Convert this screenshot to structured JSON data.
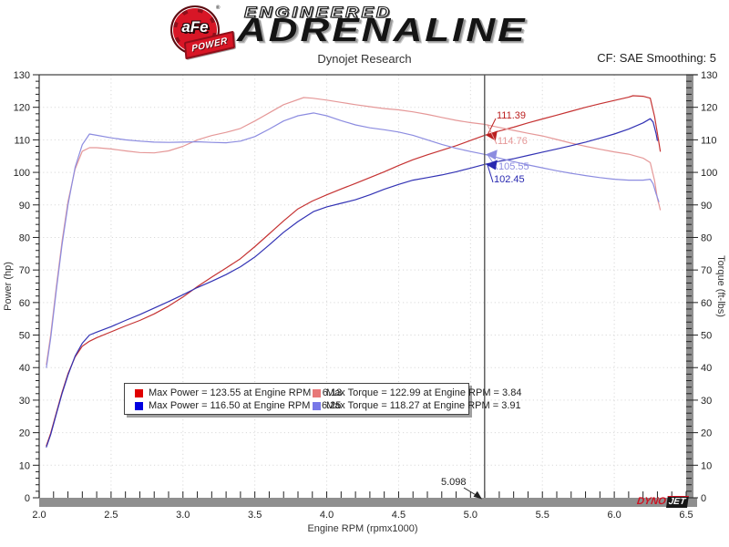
{
  "header": {
    "logo": {
      "afe": "aFe",
      "registered": "®",
      "power": "POWER",
      "line1": "ENGINEERED",
      "line2": "ADRENALINE"
    },
    "subtitle": "Dynojet Research",
    "cf_label": "CF: SAE Smoothing: 5"
  },
  "watermark": {
    "dyno": "DYNO",
    "jet": "JET"
  },
  "chart_data": {
    "type": "line",
    "xlabel": "Engine RPM (rpmx1000)",
    "ylabel_left": "Power (hp)",
    "ylabel_right": "Torque (ft-lbs)",
    "xlim": [
      2.0,
      6.5
    ],
    "ylim": [
      0,
      130
    ],
    "x_major_step": 0.5,
    "x_minor_step": 0.1,
    "y_major_step": 10,
    "y_minor_step": 2,
    "grid": true,
    "colors": {
      "grid": "#d9d9d9",
      "axis_band": "#8f8f8f",
      "border": "#444444",
      "cursor_line": "#555555"
    },
    "cursor": {
      "x": 5.098,
      "label": "5.098",
      "values": [
        {
          "value": 111.39,
          "text": "111.39",
          "series": "power-red",
          "color": "#bb2020",
          "arrow": true
        },
        {
          "value": 114.76,
          "text": "114.76",
          "series": "torque-red",
          "color": "#e59898",
          "arrow": false
        },
        {
          "value": 105.55,
          "text": "105.55",
          "series": "torque-blue",
          "color": "#8c8ce0",
          "arrow": true
        },
        {
          "value": 102.45,
          "text": "102.45",
          "series": "power-blue",
          "color": "#2828b0",
          "arrow": true
        }
      ]
    },
    "legend": {
      "entries": [
        {
          "color": "#e00000",
          "text": "Max Power = 123.55 at Engine RPM = 6.13"
        },
        {
          "color": "#e87878",
          "text": "Max Torque = 122.99 at Engine RPM = 3.84"
        },
        {
          "color": "#0000e0",
          "text": "Max Power = 116.50 at Engine RPM = 6.25"
        },
        {
          "color": "#7878e8",
          "text": "Max Torque = 118.27 at Engine RPM = 3.91"
        }
      ]
    },
    "series": [
      {
        "name": "power-red",
        "color": "#c53232",
        "max": {
          "value": 123.55,
          "rpm": 6.13
        },
        "points": [
          [
            2.05,
            16
          ],
          [
            2.08,
            19.8
          ],
          [
            2.12,
            26.2
          ],
          [
            2.16,
            32.5
          ],
          [
            2.2,
            38.1
          ],
          [
            2.25,
            43.3
          ],
          [
            2.3,
            46.6
          ],
          [
            2.35,
            48.1
          ],
          [
            2.4,
            49.2
          ],
          [
            2.5,
            51
          ],
          [
            2.6,
            52.8
          ],
          [
            2.7,
            54.5
          ],
          [
            2.8,
            56.5
          ],
          [
            2.9,
            58.9
          ],
          [
            3,
            61.7
          ],
          [
            3.1,
            64.9
          ],
          [
            3.2,
            67.8
          ],
          [
            3.3,
            70.6
          ],
          [
            3.4,
            73.5
          ],
          [
            3.5,
            77.2
          ],
          [
            3.6,
            81.1
          ],
          [
            3.7,
            85.1
          ],
          [
            3.8,
            88.8
          ],
          [
            3.9,
            91.2
          ],
          [
            4,
            93.1
          ],
          [
            4.1,
            94.9
          ],
          [
            4.2,
            96.6
          ],
          [
            4.3,
            98.4
          ],
          [
            4.4,
            100.2
          ],
          [
            4.5,
            102.1
          ],
          [
            4.6,
            103.9
          ],
          [
            4.7,
            105.4
          ],
          [
            4.8,
            106.8
          ],
          [
            4.9,
            108.2
          ],
          [
            5,
            109.8
          ],
          [
            5.098,
            111.39
          ],
          [
            5.2,
            112.7
          ],
          [
            5.3,
            113.9
          ],
          [
            5.4,
            115.2
          ],
          [
            5.5,
            116.4
          ],
          [
            5.6,
            117.6
          ],
          [
            5.7,
            118.8
          ],
          [
            5.8,
            120
          ],
          [
            5.9,
            121.1
          ],
          [
            6,
            122.1
          ],
          [
            6.1,
            123.1
          ],
          [
            6.13,
            123.55
          ],
          [
            6.2,
            123.4
          ],
          [
            6.25,
            122.8
          ],
          [
            6.28,
            117.2
          ],
          [
            6.3,
            112
          ],
          [
            6.32,
            106.5
          ]
        ]
      },
      {
        "name": "torque-red",
        "color": "#e59898",
        "max": {
          "value": 122.99,
          "rpm": 3.84
        },
        "points": [
          [
            2.05,
            41
          ],
          [
            2.08,
            50
          ],
          [
            2.12,
            65
          ],
          [
            2.16,
            79
          ],
          [
            2.2,
            91
          ],
          [
            2.25,
            101
          ],
          [
            2.3,
            106.5
          ],
          [
            2.35,
            107.6
          ],
          [
            2.4,
            107.6
          ],
          [
            2.5,
            107.2
          ],
          [
            2.6,
            106.6
          ],
          [
            2.7,
            106.1
          ],
          [
            2.8,
            106
          ],
          [
            2.9,
            106.6
          ],
          [
            3,
            108
          ],
          [
            3.1,
            110
          ],
          [
            3.2,
            111.3
          ],
          [
            3.3,
            112.3
          ],
          [
            3.4,
            113.5
          ],
          [
            3.5,
            115.8
          ],
          [
            3.6,
            118.3
          ],
          [
            3.7,
            120.8
          ],
          [
            3.84,
            122.99
          ],
          [
            3.9,
            122.8
          ],
          [
            4,
            122.2
          ],
          [
            4.1,
            121.5
          ],
          [
            4.2,
            120.8
          ],
          [
            4.3,
            120.2
          ],
          [
            4.4,
            119.6
          ],
          [
            4.5,
            119.2
          ],
          [
            4.6,
            118.6
          ],
          [
            4.7,
            117.8
          ],
          [
            4.8,
            116.9
          ],
          [
            4.9,
            116
          ],
          [
            5,
            115.3
          ],
          [
            5.098,
            114.76
          ],
          [
            5.2,
            113.8
          ],
          [
            5.3,
            112.9
          ],
          [
            5.4,
            112
          ],
          [
            5.5,
            111.2
          ],
          [
            5.6,
            110.1
          ],
          [
            5.7,
            109
          ],
          [
            5.8,
            108
          ],
          [
            5.9,
            107.1
          ],
          [
            6,
            106.3
          ],
          [
            6.1,
            105.6
          ],
          [
            6.2,
            104.4
          ],
          [
            6.25,
            103
          ],
          [
            6.28,
            97.5
          ],
          [
            6.3,
            92
          ],
          [
            6.32,
            88.5
          ]
        ]
      },
      {
        "name": "power-blue",
        "color": "#3232b4",
        "max": {
          "value": 116.5,
          "rpm": 6.25
        },
        "points": [
          [
            2.05,
            15.6
          ],
          [
            2.08,
            19.4
          ],
          [
            2.12,
            25.8
          ],
          [
            2.16,
            32.1
          ],
          [
            2.2,
            37.7
          ],
          [
            2.25,
            43.5
          ],
          [
            2.3,
            47.5
          ],
          [
            2.35,
            50
          ],
          [
            2.4,
            50.9
          ],
          [
            2.5,
            52.6
          ],
          [
            2.6,
            54.5
          ],
          [
            2.7,
            56.3
          ],
          [
            2.8,
            58.3
          ],
          [
            2.9,
            60.3
          ],
          [
            3,
            62.4
          ],
          [
            3.1,
            64.6
          ],
          [
            3.2,
            66.5
          ],
          [
            3.3,
            68.6
          ],
          [
            3.4,
            71
          ],
          [
            3.5,
            74
          ],
          [
            3.6,
            77.7
          ],
          [
            3.7,
            81.6
          ],
          [
            3.8,
            84.9
          ],
          [
            3.91,
            88
          ],
          [
            4,
            89.4
          ],
          [
            4.1,
            90.5
          ],
          [
            4.2,
            91.6
          ],
          [
            4.3,
            93.1
          ],
          [
            4.4,
            94.8
          ],
          [
            4.5,
            96.3
          ],
          [
            4.6,
            97.6
          ],
          [
            4.7,
            98.4
          ],
          [
            4.8,
            99.2
          ],
          [
            4.9,
            100.2
          ],
          [
            5,
            101.3
          ],
          [
            5.098,
            102.45
          ],
          [
            5.2,
            103.4
          ],
          [
            5.3,
            104.2
          ],
          [
            5.4,
            105.2
          ],
          [
            5.5,
            106.2
          ],
          [
            5.6,
            107.2
          ],
          [
            5.7,
            108.2
          ],
          [
            5.8,
            109.3
          ],
          [
            5.9,
            110.5
          ],
          [
            6,
            111.8
          ],
          [
            6.1,
            113.3
          ],
          [
            6.2,
            115.2
          ],
          [
            6.25,
            116.5
          ],
          [
            6.27,
            115.5
          ],
          [
            6.29,
            112
          ],
          [
            6.3,
            109.8
          ]
        ]
      },
      {
        "name": "torque-blue",
        "color": "#8c8ce0",
        "max": {
          "value": 118.27,
          "rpm": 3.91
        },
        "points": [
          [
            2.05,
            40
          ],
          [
            2.08,
            49
          ],
          [
            2.12,
            64
          ],
          [
            2.16,
            78
          ],
          [
            2.2,
            90
          ],
          [
            2.25,
            101.5
          ],
          [
            2.3,
            108.5
          ],
          [
            2.35,
            111.8
          ],
          [
            2.4,
            111.4
          ],
          [
            2.5,
            110.6
          ],
          [
            2.6,
            110
          ],
          [
            2.7,
            109.6
          ],
          [
            2.8,
            109.3
          ],
          [
            2.9,
            109.2
          ],
          [
            3,
            109.3
          ],
          [
            3.1,
            109.4
          ],
          [
            3.2,
            109.2
          ],
          [
            3.3,
            109.1
          ],
          [
            3.4,
            109.6
          ],
          [
            3.5,
            111
          ],
          [
            3.6,
            113.3
          ],
          [
            3.7,
            115.8
          ],
          [
            3.8,
            117.4
          ],
          [
            3.91,
            118.27
          ],
          [
            4,
            117.4
          ],
          [
            4.1,
            115.9
          ],
          [
            4.2,
            114.6
          ],
          [
            4.3,
            113.7
          ],
          [
            4.4,
            113.1
          ],
          [
            4.5,
            112.4
          ],
          [
            4.6,
            111.4
          ],
          [
            4.7,
            110
          ],
          [
            4.8,
            108.6
          ],
          [
            4.9,
            107.4
          ],
          [
            5,
            106.4
          ],
          [
            5.098,
            105.55
          ],
          [
            5.2,
            104.4
          ],
          [
            5.3,
            103.3
          ],
          [
            5.4,
            102.3
          ],
          [
            5.5,
            101.4
          ],
          [
            5.6,
            100.5
          ],
          [
            5.7,
            99.7
          ],
          [
            5.8,
            99
          ],
          [
            5.9,
            98.4
          ],
          [
            6,
            97.9
          ],
          [
            6.1,
            97.6
          ],
          [
            6.2,
            97.6
          ],
          [
            6.25,
            97.9
          ],
          [
            6.27,
            96.5
          ],
          [
            6.29,
            93.5
          ],
          [
            6.31,
            91
          ]
        ]
      }
    ]
  }
}
